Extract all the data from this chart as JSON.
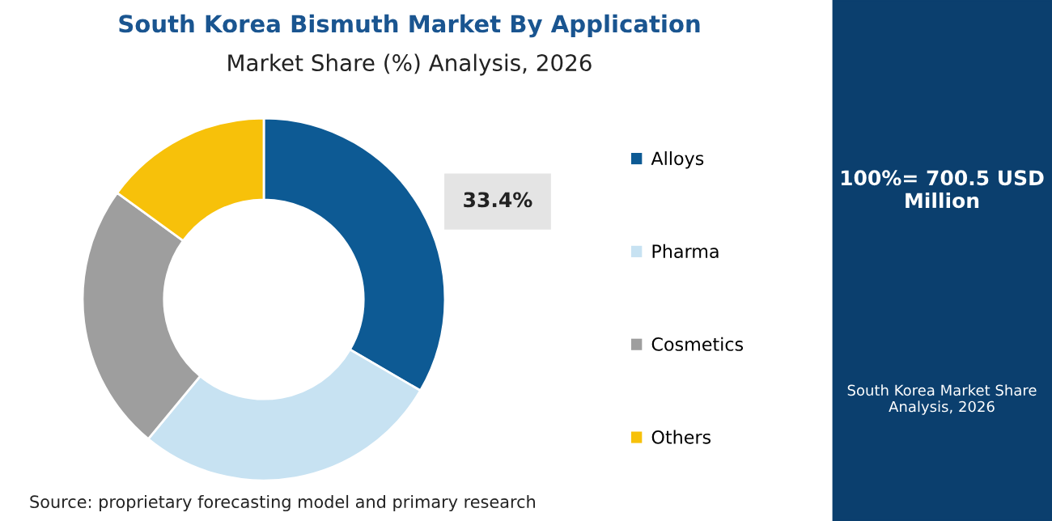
{
  "chart_data": {
    "type": "donut",
    "title": "South Korea Bismuth Market By Application",
    "subtitle": "Market Share (%) Analysis, 2026",
    "categories": [
      "Alloys",
      "Pharma",
      "Cosmetics",
      "Others"
    ],
    "values": [
      33.4,
      27.6,
      24.0,
      15.0
    ],
    "colors": [
      "#0d5a94",
      "#c7e2f2",
      "#9e9e9e",
      "#f7c10a"
    ],
    "value_labels": [
      "33.4%",
      null,
      null,
      null
    ],
    "legend": "right",
    "annotations": [
      "100%= 700.5 USD Million",
      "South Korea Market Share Analysis, 2026",
      "Source: proprietary forecasting model and primary research"
    ]
  }
}
